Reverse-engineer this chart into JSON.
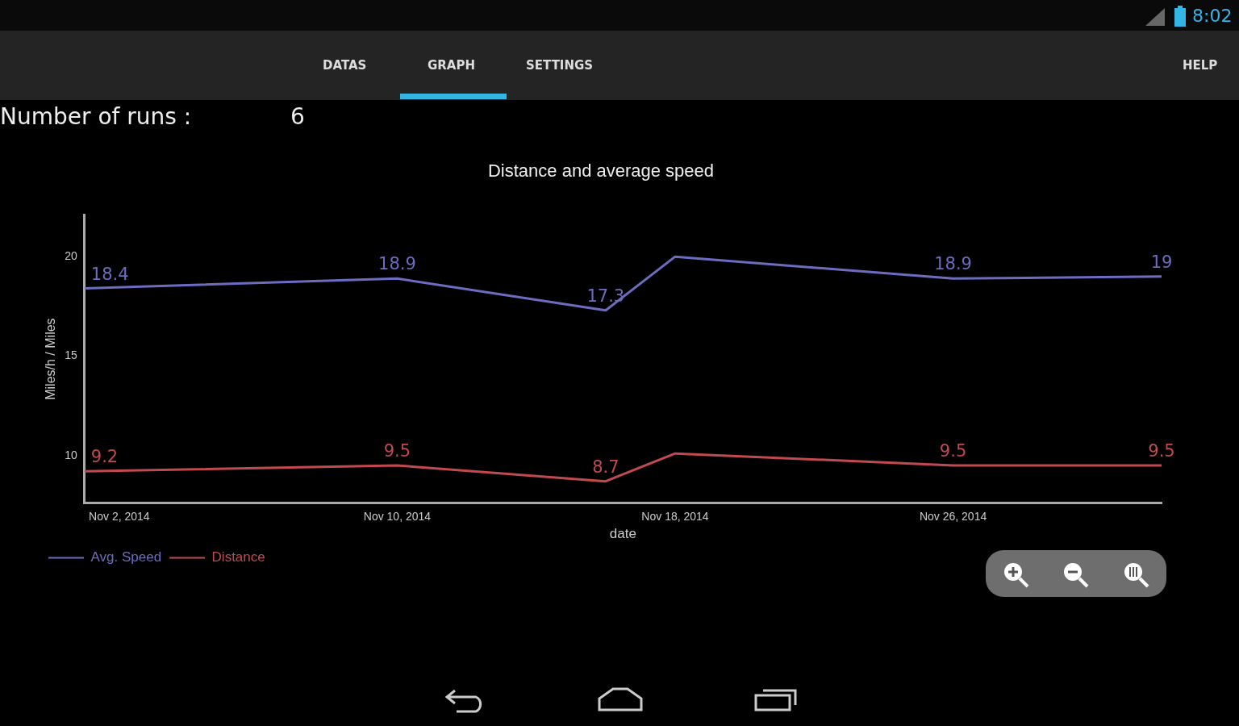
{
  "chart_data": {
    "type": "line",
    "title": "Distance and average speed",
    "xlabel": "date",
    "ylabel": "Miles/h / Miles",
    "x": [
      "2014-11-01",
      "2014-11-10",
      "2014-11-16",
      "2014-11-18",
      "2014-11-26",
      "2014-12-02"
    ],
    "series": [
      {
        "name": "Avg. Speed",
        "color": "#6c6cc0",
        "values": [
          18.4,
          18.9,
          17.3,
          20.0,
          18.9,
          19.0
        ],
        "value_labels": [
          "18.4",
          "18.9",
          "17.3",
          null,
          "18.9",
          "19"
        ]
      },
      {
        "name": "Distance",
        "color": "#c04a4e",
        "values": [
          9.2,
          9.5,
          8.7,
          10.1,
          9.5,
          9.5
        ],
        "value_labels": [
          "9.2",
          "9.5",
          "8.7",
          null,
          "9.5",
          "9.5"
        ]
      }
    ],
    "xlim": [
      "2014-11-01",
      "2014-12-02"
    ],
    "xticks": [
      {
        "value": "2014-11-02",
        "label": "Nov 2, 2014"
      },
      {
        "value": "2014-11-10",
        "label": "Nov 10, 2014"
      },
      {
        "value": "2014-11-18",
        "label": "Nov 18, 2014"
      },
      {
        "value": "2014-11-26",
        "label": "Nov 26, 2014"
      }
    ],
    "ylim": [
      7.6,
      22.1
    ],
    "yticks": [
      10,
      15,
      20
    ],
    "grid": false,
    "legend": "bottom left",
    "marker": "none",
    "line_style": "solid",
    "annotations": [
      "Number of runs :",
      "6",
      "DATAS",
      "GRAPH",
      "SETTINGS",
      "HELP",
      "8:02"
    ]
  }
}
